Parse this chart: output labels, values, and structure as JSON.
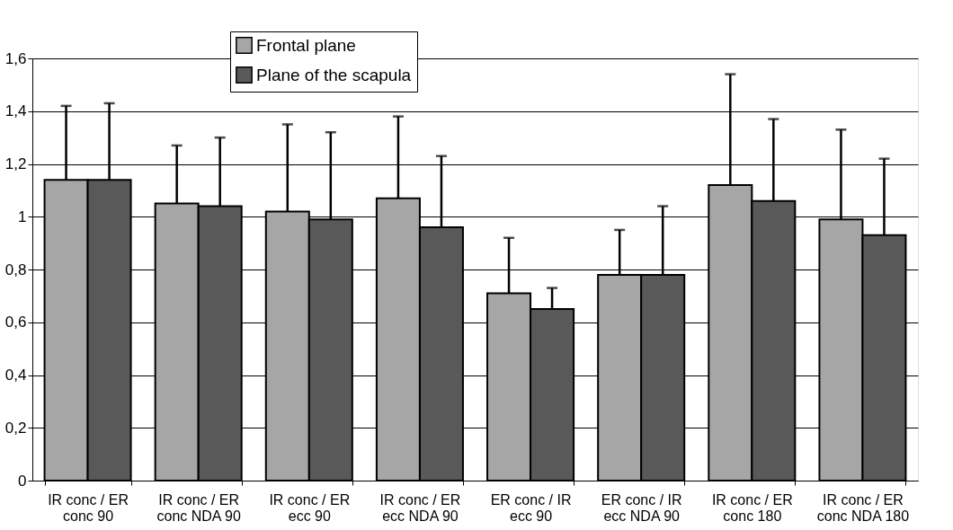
{
  "chart_data": {
    "type": "bar",
    "categories": [
      "IR conc / ER conc 90",
      "IR conc / ER conc NDA 90",
      "IR conc / ER ecc 90",
      "IR conc / ER ecc NDA 90",
      "ER conc / IR ecc 90",
      "ER conc / IR ecc NDA 90",
      "IR conc / ER conc 180",
      "IR conc / ER conc NDA 180"
    ],
    "series": [
      {
        "name": "Frontal plane",
        "color": "#a6a6a6",
        "values": [
          1.14,
          1.05,
          1.02,
          1.07,
          0.71,
          0.78,
          1.12,
          0.99
        ],
        "errors": [
          [
            1.14,
            1.42
          ],
          [
            1.05,
            1.27
          ],
          [
            1.02,
            1.35
          ],
          [
            1.07,
            1.38
          ],
          [
            0.71,
            0.92
          ],
          [
            0.78,
            0.95
          ],
          [
            1.12,
            1.54
          ],
          [
            0.99,
            1.33
          ]
        ]
      },
      {
        "name": "Plane of the scapula",
        "color": "#595959",
        "values": [
          1.14,
          1.04,
          0.99,
          0.96,
          0.65,
          0.78,
          1.06,
          0.93
        ],
        "errors": [
          [
            1.14,
            1.43
          ],
          [
            1.04,
            1.3
          ],
          [
            0.99,
            1.32
          ],
          [
            0.96,
            1.23
          ],
          [
            0.65,
            0.73
          ],
          [
            0.78,
            1.04
          ],
          [
            1.06,
            1.37
          ],
          [
            0.93,
            1.22
          ]
        ]
      }
    ],
    "ylim": [
      0,
      1.6
    ],
    "yticks": [
      {
        "value": 0,
        "label": "0"
      },
      {
        "value": 0.2,
        "label": "0,2"
      },
      {
        "value": 0.4,
        "label": "0,4"
      },
      {
        "value": 0.6,
        "label": "0,6"
      },
      {
        "value": 0.8,
        "label": "0,8"
      },
      {
        "value": 1,
        "label": "1"
      },
      {
        "value": 1.2,
        "label": "1,2"
      },
      {
        "value": 1.4,
        "label": "1,4"
      },
      {
        "value": 1.6,
        "label": "1,6"
      }
    ],
    "grid": "y",
    "legend": "top"
  }
}
